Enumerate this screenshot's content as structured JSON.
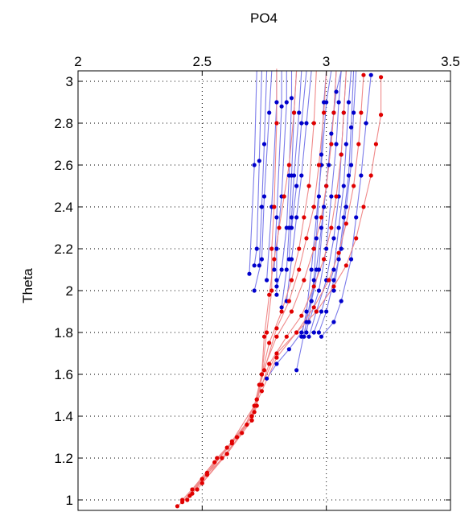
{
  "chart_data": {
    "type": "line",
    "title": "PO4",
    "xlabel": "PO4",
    "ylabel": "Theta",
    "xlim": [
      2,
      3.5
    ],
    "ylim": [
      0.95,
      3.05
    ],
    "x_ticks": [
      "2",
      "2.5",
      "3",
      "3.5"
    ],
    "y_ticks": [
      "1",
      "1.2",
      "1.4",
      "1.6",
      "1.8",
      "2",
      "2.2",
      "2.4",
      "2.6",
      "2.8",
      "3"
    ],
    "x_axis_position": "top",
    "grid": true,
    "series_colors": {
      "blue": "#0000cc",
      "blue_line": "#7b7bea",
      "red": "#e00000",
      "red_line": "#f08a8a"
    },
    "series": [
      {
        "color": "blue",
        "points": [
          [
            2.72,
            3.05
          ],
          [
            2.71,
            2.6
          ],
          [
            2.69,
            2.08
          ]
        ]
      },
      {
        "color": "blue",
        "points": [
          [
            2.74,
            3.05
          ],
          [
            2.73,
            2.62
          ],
          [
            2.72,
            2.2
          ],
          [
            2.71,
            2.12
          ]
        ]
      },
      {
        "color": "blue",
        "points": [
          [
            2.76,
            3.05
          ],
          [
            2.75,
            2.7
          ],
          [
            2.74,
            2.4
          ],
          [
            2.73,
            2.12
          ]
        ]
      },
      {
        "color": "blue",
        "points": [
          [
            2.78,
            3.05
          ],
          [
            2.77,
            2.85
          ],
          [
            2.75,
            2.45
          ],
          [
            2.74,
            2.15
          ],
          [
            2.71,
            2.0
          ]
        ]
      },
      {
        "color": "blue",
        "points": [
          [
            2.8,
            3.05
          ],
          [
            2.8,
            2.9
          ],
          [
            2.78,
            2.4
          ],
          [
            2.76,
            2.05
          ]
        ]
      },
      {
        "color": "blue",
        "points": [
          [
            2.82,
            3.05
          ],
          [
            2.82,
            2.88
          ],
          [
            2.8,
            2.35
          ],
          [
            2.79,
            2.1
          ]
        ]
      },
      {
        "color": "blue",
        "points": [
          [
            2.84,
            3.05
          ],
          [
            2.84,
            2.9
          ],
          [
            2.82,
            2.45
          ],
          [
            2.8,
            2.2
          ],
          [
            2.8,
            2.05
          ],
          [
            2.8,
            1.98
          ]
        ]
      },
      {
        "color": "blue",
        "points": [
          [
            2.86,
            3.05
          ],
          [
            2.86,
            2.92
          ],
          [
            2.85,
            2.55
          ],
          [
            2.84,
            2.3
          ],
          [
            2.82,
            2.1
          ],
          [
            2.8,
            2.02
          ]
        ]
      },
      {
        "color": "blue",
        "points": [
          [
            2.88,
            3.05
          ],
          [
            2.87,
            2.85
          ],
          [
            2.86,
            2.55
          ],
          [
            2.85,
            2.3
          ],
          [
            2.84,
            2.1
          ],
          [
            2.82,
            1.92
          ]
        ]
      },
      {
        "color": "blue",
        "points": [
          [
            2.9,
            3.05
          ],
          [
            2.89,
            2.85
          ],
          [
            2.87,
            2.55
          ],
          [
            2.86,
            2.35
          ],
          [
            2.85,
            2.15
          ]
        ]
      },
      {
        "color": "blue",
        "points": [
          [
            2.92,
            3.05
          ],
          [
            2.9,
            2.8
          ],
          [
            2.88,
            2.5
          ],
          [
            2.86,
            2.3
          ]
        ]
      },
      {
        "color": "blue",
        "points": [
          [
            2.94,
            3.05
          ],
          [
            2.92,
            2.8
          ],
          [
            2.9,
            2.55
          ],
          [
            2.88,
            2.35
          ],
          [
            2.86,
            2.15
          ],
          [
            2.84,
            1.95
          ]
        ]
      },
      {
        "color": "blue",
        "points": [
          [
            3.02,
            3.05
          ],
          [
            3.0,
            2.9
          ],
          [
            2.98,
            2.6
          ],
          [
            2.96,
            2.35
          ],
          [
            2.94,
            2.1
          ],
          [
            2.92,
            1.9
          ],
          [
            2.9,
            1.78
          ]
        ]
      },
      {
        "color": "blue",
        "points": [
          [
            3.04,
            3.05
          ],
          [
            3.03,
            2.85
          ],
          [
            3.01,
            2.6
          ],
          [
            2.99,
            2.4
          ],
          [
            2.97,
            2.1
          ],
          [
            2.94,
            1.95
          ],
          [
            2.92,
            1.8
          ]
        ]
      },
      {
        "color": "blue",
        "points": [
          [
            3.06,
            3.05
          ],
          [
            3.05,
            2.9
          ],
          [
            3.04,
            2.7
          ],
          [
            3.02,
            2.45
          ],
          [
            3.0,
            2.2
          ],
          [
            2.97,
            2.0
          ],
          [
            2.93,
            1.85
          ],
          [
            2.91,
            1.78
          ]
        ]
      },
      {
        "color": "blue",
        "points": [
          [
            3.08,
            3.05
          ],
          [
            3.07,
            2.85
          ],
          [
            3.06,
            2.65
          ],
          [
            3.05,
            2.45
          ],
          [
            3.03,
            2.25
          ],
          [
            3.0,
            2.05
          ],
          [
            2.96,
            1.9
          ],
          [
            2.93,
            1.78
          ]
        ]
      },
      {
        "color": "blue",
        "points": [
          [
            3.1,
            3.05
          ],
          [
            3.09,
            2.9
          ],
          [
            3.08,
            2.7
          ],
          [
            3.07,
            2.5
          ],
          [
            3.05,
            2.3
          ],
          [
            3.03,
            2.1
          ],
          [
            2.98,
            1.9
          ],
          [
            2.95,
            1.8
          ]
        ]
      },
      {
        "color": "blue",
        "points": [
          [
            3.12,
            3.05
          ],
          [
            3.11,
            2.85
          ],
          [
            3.1,
            2.6
          ],
          [
            3.08,
            2.4
          ],
          [
            3.06,
            2.2
          ],
          [
            3.03,
            2.05
          ],
          [
            3.0,
            1.9
          ],
          [
            2.97,
            1.8
          ]
        ]
      },
      {
        "color": "blue",
        "points": [
          [
            3.11,
            3.05
          ],
          [
            3.1,
            2.78
          ],
          [
            3.09,
            2.55
          ],
          [
            3.07,
            2.35
          ],
          [
            3.05,
            2.15
          ],
          [
            3.03,
            2.0
          ]
        ]
      },
      {
        "color": "blue",
        "points": [
          [
            3.18,
            3.03
          ],
          [
            3.16,
            2.8
          ],
          [
            3.14,
            2.55
          ],
          [
            3.12,
            2.35
          ],
          [
            3.1,
            2.15
          ],
          [
            3.06,
            1.95
          ],
          [
            3.03,
            1.85
          ],
          [
            2.98,
            1.78
          ]
        ]
      },
      {
        "color": "blue",
        "points": [
          [
            3.06,
            3.05
          ],
          [
            3.04,
            2.95
          ],
          [
            3.02,
            2.75
          ],
          [
            3.0,
            2.5
          ],
          [
            2.98,
            2.3
          ],
          [
            2.96,
            2.1
          ],
          [
            2.94,
            1.95
          ],
          [
            2.9,
            1.8
          ],
          [
            2.85,
            1.72
          ],
          [
            2.8,
            1.65
          ],
          [
            2.76,
            1.58
          ]
        ]
      },
      {
        "color": "blue",
        "points": [
          [
            3.0,
            3.05
          ],
          [
            2.99,
            2.9
          ],
          [
            2.98,
            2.65
          ],
          [
            2.97,
            2.45
          ],
          [
            2.96,
            2.25
          ],
          [
            2.95,
            2.05
          ],
          [
            2.92,
            1.85
          ],
          [
            2.88,
            1.62
          ]
        ]
      },
      {
        "color": "red",
        "points": [
          [
            2.8,
            3.06
          ],
          [
            2.8,
            2.8
          ],
          [
            2.79,
            2.4
          ],
          [
            2.78,
            2.2
          ],
          [
            2.78,
            2.0
          ],
          [
            2.76,
            1.8
          ],
          [
            2.74,
            1.6
          ],
          [
            2.72,
            1.45
          ],
          [
            2.7,
            1.38
          ],
          [
            2.6,
            1.22
          ],
          [
            2.5,
            1.1
          ],
          [
            2.45,
            1.02
          ],
          [
            2.4,
            0.97
          ]
        ]
      },
      {
        "color": "red",
        "points": [
          [
            2.96,
            3.05
          ],
          [
            2.95,
            2.8
          ],
          [
            2.93,
            2.5
          ],
          [
            2.91,
            2.35
          ],
          [
            2.89,
            2.2
          ],
          [
            2.86,
            2.05
          ],
          [
            2.82,
            1.9
          ],
          [
            2.77,
            1.75
          ],
          [
            2.73,
            1.55
          ],
          [
            2.7,
            1.4
          ],
          [
            2.6,
            1.25
          ],
          [
            2.5,
            1.1
          ],
          [
            2.42,
            0.99
          ]
        ]
      },
      {
        "color": "red",
        "points": [
          [
            3.0,
            3.05
          ],
          [
            2.99,
            2.85
          ],
          [
            2.97,
            2.6
          ],
          [
            2.95,
            2.4
          ],
          [
            2.92,
            2.25
          ],
          [
            2.89,
            2.1
          ],
          [
            2.85,
            1.95
          ],
          [
            2.8,
            1.82
          ],
          [
            2.75,
            1.62
          ],
          [
            2.71,
            1.45
          ],
          [
            2.62,
            1.28
          ],
          [
            2.52,
            1.12
          ],
          [
            2.44,
            1.0
          ]
        ]
      },
      {
        "color": "red",
        "points": [
          [
            3.04,
            3.05
          ],
          [
            3.03,
            2.85
          ],
          [
            3.02,
            2.7
          ],
          [
            3.0,
            2.5
          ],
          [
            2.98,
            2.35
          ],
          [
            2.95,
            2.2
          ],
          [
            2.91,
            2.05
          ],
          [
            2.86,
            1.9
          ],
          [
            2.8,
            1.78
          ],
          [
            2.74,
            1.6
          ],
          [
            2.71,
            1.42
          ],
          [
            2.64,
            1.3
          ],
          [
            2.55,
            1.18
          ],
          [
            2.46,
            1.03
          ]
        ]
      },
      {
        "color": "red",
        "points": [
          [
            3.08,
            3.05
          ],
          [
            3.07,
            2.85
          ],
          [
            3.06,
            2.65
          ],
          [
            3.04,
            2.45
          ],
          [
            3.02,
            2.3
          ],
          [
            2.99,
            2.15
          ],
          [
            2.95,
            2.02
          ],
          [
            2.9,
            1.88
          ],
          [
            2.84,
            1.78
          ],
          [
            2.77,
            1.65
          ],
          [
            2.72,
            1.48
          ],
          [
            2.66,
            1.32
          ],
          [
            2.58,
            1.2
          ],
          [
            2.48,
            1.05
          ]
        ]
      },
      {
        "color": "red",
        "points": [
          [
            3.15,
            3.03
          ],
          [
            3.14,
            2.85
          ],
          [
            3.13,
            2.7
          ],
          [
            3.11,
            2.5
          ],
          [
            3.08,
            2.32
          ],
          [
            3.05,
            2.18
          ],
          [
            3.01,
            2.05
          ],
          [
            2.95,
            1.92
          ],
          [
            2.88,
            1.8
          ],
          [
            2.8,
            1.68
          ],
          [
            2.74,
            1.52
          ],
          [
            2.68,
            1.36
          ],
          [
            2.6,
            1.22
          ],
          [
            2.5,
            1.08
          ]
        ]
      },
      {
        "color": "red",
        "points": [
          [
            3.22,
            3.02
          ],
          [
            3.22,
            2.84
          ],
          [
            3.2,
            2.7
          ],
          [
            3.18,
            2.55
          ],
          [
            3.15,
            2.4
          ],
          [
            3.12,
            2.25
          ],
          [
            3.08,
            2.12
          ],
          [
            3.03,
            2.02
          ],
          [
            2.96,
            1.9
          ],
          [
            2.88,
            1.8
          ],
          [
            2.8,
            1.7
          ],
          [
            2.74,
            1.55
          ],
          [
            2.7,
            1.4
          ],
          [
            2.62,
            1.27
          ],
          [
            2.52,
            1.13
          ],
          [
            2.42,
            1.0
          ]
        ]
      },
      {
        "color": "red",
        "points": [
          [
            2.88,
            3.05
          ],
          [
            2.87,
            2.85
          ],
          [
            2.85,
            2.6
          ],
          [
            2.83,
            2.45
          ],
          [
            2.81,
            2.3
          ],
          [
            2.79,
            2.15
          ],
          [
            2.77,
            1.98
          ],
          [
            2.75,
            1.78
          ],
          [
            2.74,
            1.6
          ],
          [
            2.72,
            1.48
          ],
          [
            2.7,
            1.38
          ],
          [
            2.56,
            1.2
          ],
          [
            2.46,
            1.05
          ]
        ]
      }
    ]
  }
}
